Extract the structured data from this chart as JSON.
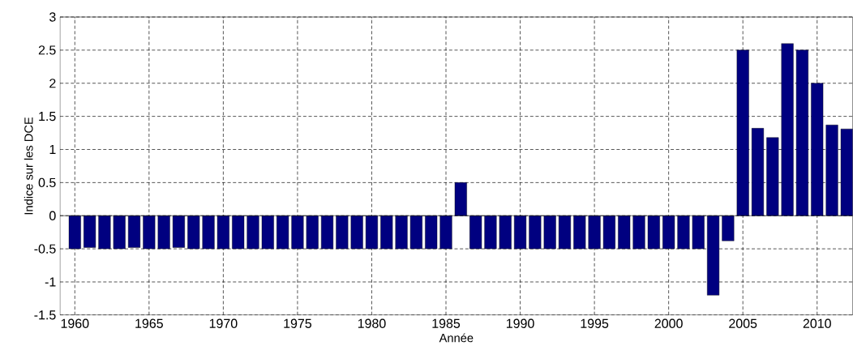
{
  "chart_data": {
    "type": "bar",
    "xlabel": "Année",
    "ylabel": "Indice sur les DCE",
    "color": "#000080",
    "x": [
      1960,
      1961,
      1962,
      1963,
      1964,
      1965,
      1966,
      1967,
      1968,
      1969,
      1970,
      1971,
      1972,
      1973,
      1974,
      1975,
      1976,
      1977,
      1978,
      1979,
      1980,
      1981,
      1982,
      1983,
      1984,
      1985,
      1986,
      1987,
      1988,
      1989,
      1990,
      1991,
      1992,
      1993,
      1994,
      1995,
      1996,
      1997,
      1998,
      1999,
      2000,
      2001,
      2002,
      2003,
      2004,
      2005,
      2006,
      2007,
      2008,
      2009,
      2010,
      2011,
      2012
    ],
    "values": [
      -0.5,
      -0.48,
      -0.5,
      -0.5,
      -0.48,
      -0.5,
      -0.5,
      -0.48,
      -0.5,
      -0.5,
      -0.5,
      -0.5,
      -0.5,
      -0.5,
      -0.5,
      -0.5,
      -0.5,
      -0.5,
      -0.5,
      -0.5,
      -0.5,
      -0.5,
      -0.5,
      -0.5,
      -0.5,
      -0.5,
      0.5,
      -0.5,
      -0.5,
      -0.5,
      -0.5,
      -0.5,
      -0.5,
      -0.5,
      -0.5,
      -0.5,
      -0.5,
      -0.5,
      -0.5,
      -0.5,
      -0.5,
      -0.5,
      -0.5,
      -1.2,
      -0.38,
      2.5,
      1.32,
      1.18,
      2.6,
      2.5,
      2.0,
      1.37,
      1.31
    ],
    "xlim": [
      1959,
      2012.4
    ],
    "xticks": [
      1960,
      1965,
      1970,
      1975,
      1980,
      1985,
      1990,
      1995,
      2000,
      2005,
      2010
    ],
    "ylim": [
      -1.5,
      3
    ],
    "yticks": [
      -1.5,
      -1,
      -0.5,
      0,
      0.5,
      1,
      1.5,
      2,
      2.5,
      3
    ],
    "grid": true
  }
}
